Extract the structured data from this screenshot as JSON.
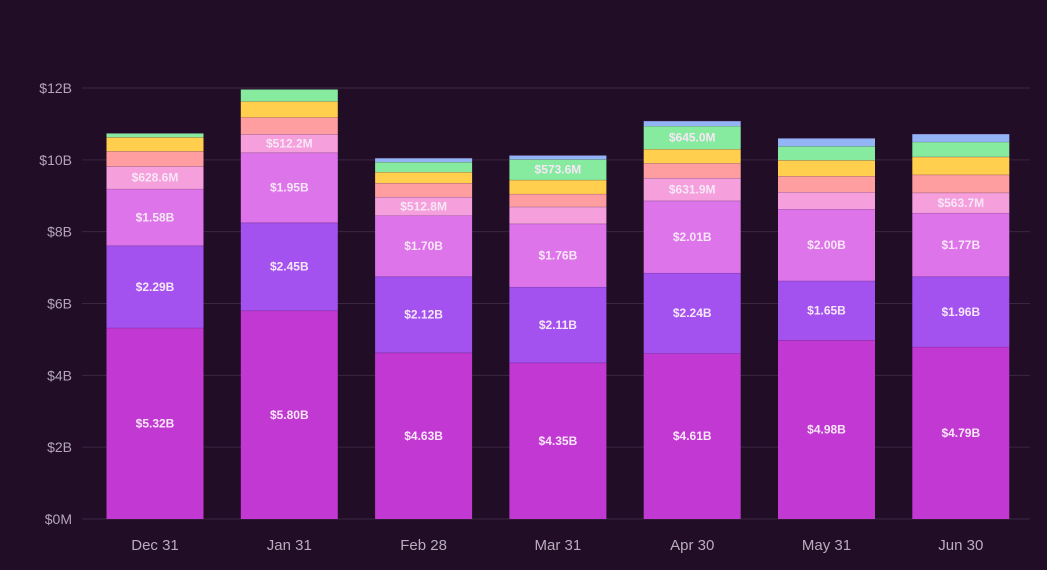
{
  "chart_data": {
    "type": "bar",
    "stacked": true,
    "title": "",
    "xlabel": "",
    "ylabel": "",
    "ylim": [
      0,
      12000
    ],
    "y_unit": "millions USD",
    "y_ticks": [
      {
        "value": 0,
        "label": "$0M"
      },
      {
        "value": 2000,
        "label": "$2B"
      },
      {
        "value": 4000,
        "label": "$4B"
      },
      {
        "value": 6000,
        "label": "$6B"
      },
      {
        "value": 8000,
        "label": "$8B"
      },
      {
        "value": 10000,
        "label": "$10B"
      },
      {
        "value": 12000,
        "label": "$12B"
      }
    ],
    "grid": true,
    "legend": "none",
    "categories": [
      "Dec 31",
      "Jan 31",
      "Feb 28",
      "Mar 31",
      "Apr 30",
      "May 31",
      "Jun 30"
    ],
    "series": [
      {
        "name": "Series 1",
        "color": "#c238d3",
        "values": [
          5320,
          5800,
          4630,
          4350,
          4610,
          4980,
          4790
        ],
        "labels": [
          "$5.32B",
          "$5.80B",
          "$4.63B",
          "$4.35B",
          "$4.61B",
          "$4.98B",
          "$4.79B"
        ]
      },
      {
        "name": "Series 2",
        "color": "#a352f0",
        "values": [
          2290,
          2450,
          2120,
          2110,
          2240,
          1650,
          1960
        ],
        "labels": [
          "$2.29B",
          "$2.45B",
          "$2.12B",
          "$2.11B",
          "$2.24B",
          "$1.65B",
          "$1.96B"
        ]
      },
      {
        "name": "Series 3",
        "color": "#dd74ea",
        "values": [
          1580,
          1950,
          1700,
          1760,
          2010,
          2000,
          1770
        ],
        "labels": [
          "$1.58B",
          "$1.95B",
          "$1.70B",
          "$1.76B",
          "$2.01B",
          "$2.00B",
          "$1.77B"
        ]
      },
      {
        "name": "Series 4",
        "color": "#f5a0dc",
        "values": [
          628.6,
          512.2,
          512.8,
          470,
          631.9,
          470,
          563.7
        ],
        "labels": [
          "$628.6M",
          "$512.2M",
          "$512.8M",
          "",
          "$631.9M",
          "",
          "$563.7M"
        ]
      },
      {
        "name": "Series 5",
        "color": "#ff9ea0",
        "values": [
          420,
          470,
          390,
          360,
          415,
          445,
          500
        ],
        "labels": [
          "",
          "",
          "",
          "",
          "",
          "",
          ""
        ]
      },
      {
        "name": "Series 6",
        "color": "#ffcf4d",
        "values": [
          390,
          445,
          305,
          390,
          390,
          445,
          500
        ],
        "labels": [
          "",
          "",
          "",
          "",
          "",
          "",
          ""
        ]
      },
      {
        "name": "Series 7",
        "color": "#86ea9f",
        "values": [
          110,
          335,
          280,
          573.6,
          645.0,
          390,
          415
        ],
        "labels": [
          "",
          "",
          "",
          "$573.6M",
          "$645.0M",
          "",
          ""
        ]
      },
      {
        "name": "Series 8",
        "color": "#93b4f5",
        "values": [
          0,
          0,
          110,
          110,
          140,
          220,
          220
        ],
        "labels": [
          "",
          "",
          "",
          "",
          "",
          "",
          ""
        ]
      }
    ]
  },
  "colors": {
    "background": "#210d26",
    "grid": "#3a2742",
    "tick_text": "#b3a6b8",
    "segment_label": "#f7e7f7"
  }
}
